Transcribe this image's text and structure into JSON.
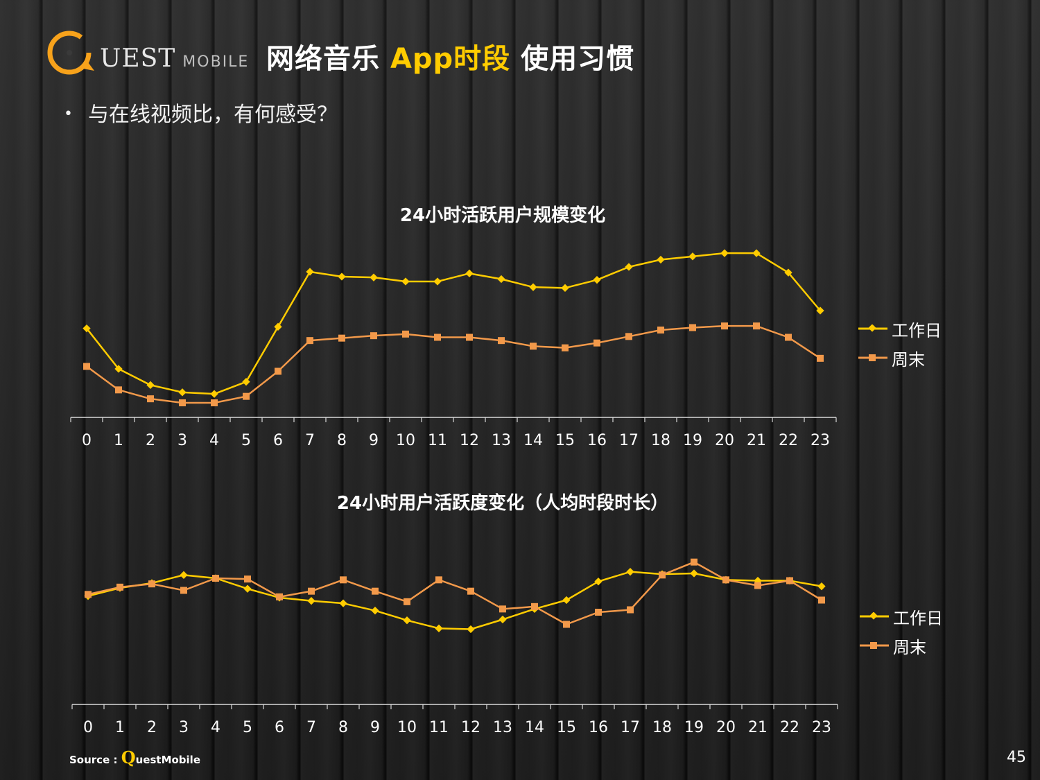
{
  "logo": {
    "main": "UEST",
    "sub": "MOBILE"
  },
  "header": {
    "title_part1": "网络音乐 ",
    "title_highlight": "App时段",
    "title_part2": " 使用习惯"
  },
  "bullet": {
    "dot": "•",
    "text": "与在线视频比，有何感受？"
  },
  "source": {
    "label": "Source :",
    "brand_q": "Q",
    "brand_rest": "uestMobile"
  },
  "page_number": "45",
  "colors": {
    "weekday": "#ffcc00",
    "weekend": "#f2994a",
    "axis": "#d9d9d9",
    "highlight": "#ffcc00"
  },
  "chart_data": [
    {
      "type": "line",
      "title": "24小时活跃用户规模变化",
      "legend_position": "right",
      "grid": false,
      "categories": [
        "0",
        "1",
        "2",
        "3",
        "4",
        "5",
        "6",
        "7",
        "8",
        "9",
        "10",
        "11",
        "12",
        "13",
        "14",
        "15",
        "16",
        "17",
        "18",
        "19",
        "20",
        "21",
        "22",
        "23"
      ],
      "series": [
        {
          "name": "工作日",
          "marker": "diamond",
          "values": [
            55,
            30,
            20,
            15.5,
            14.5,
            22,
            56,
            90,
            87,
            86.5,
            84,
            84,
            89,
            85.5,
            80.5,
            80,
            85,
            93,
            97.5,
            99.5,
            101.5,
            101.5,
            89.5,
            66
          ]
        },
        {
          "name": "周末",
          "marker": "square",
          "values": [
            31.5,
            17,
            11.5,
            9,
            9,
            13,
            28.5,
            47.5,
            49,
            50.5,
            51.5,
            49.5,
            49.5,
            47.5,
            44,
            43,
            46,
            50,
            54,
            55.5,
            56.5,
            56.5,
            49.5,
            36.5
          ]
        }
      ],
      "ylim": [
        0,
        120
      ]
    },
    {
      "type": "line",
      "title": "24小时用户活跃度变化（人均时段时长）",
      "legend_position": "right",
      "grid": false,
      "categories": [
        "0",
        "1",
        "2",
        "3",
        "4",
        "5",
        "6",
        "7",
        "8",
        "9",
        "10",
        "11",
        "12",
        "13",
        "14",
        "15",
        "16",
        "17",
        "18",
        "19",
        "20",
        "21",
        "22",
        "23"
      ],
      "series": [
        {
          "name": "工作日",
          "marker": "diamond",
          "values": [
            67,
            72,
            75,
            80,
            78,
            71.5,
            66,
            64,
            62.5,
            58,
            52,
            47,
            46.5,
            52.5,
            59,
            64.5,
            76,
            82,
            80.5,
            81,
            77,
            76.5,
            76.5,
            73
          ]
        },
        {
          "name": "周末",
          "marker": "square",
          "values": [
            68,
            72.5,
            74.5,
            70.5,
            78,
            77.5,
            66.5,
            70,
            77,
            70,
            63.5,
            77,
            70,
            59,
            60.5,
            49.5,
            57,
            58.5,
            80,
            88,
            77,
            73.5,
            76.5,
            64.5
          ]
        }
      ],
      "ylim": [
        0,
        120
      ]
    }
  ]
}
